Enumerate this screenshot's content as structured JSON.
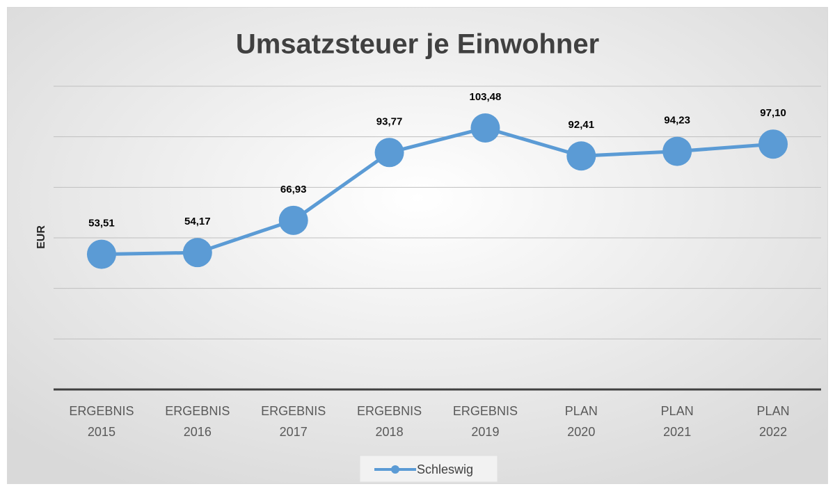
{
  "chart_data": {
    "type": "line",
    "title": "Umsatzsteuer je Einwohner",
    "y_label": "EUR",
    "categories": [
      "ERGEBNIS 2015",
      "ERGEBNIS 2016",
      "ERGEBNIS 2017",
      "ERGEBNIS 2018",
      "ERGEBNIS 2019",
      "PLAN 2020",
      "PLAN 2021",
      "PLAN 2022"
    ],
    "series": [
      {
        "name": "Schleswig",
        "color": "#5b9bd5",
        "values": [
          53.51,
          54.17,
          66.93,
          93.77,
          103.48,
          92.41,
          94.23,
          97.1
        ],
        "value_labels": [
          "53,51",
          "54,17",
          "66,93",
          "93,77",
          "103,48",
          "92,41",
          "94,23",
          "97,10"
        ]
      }
    ],
    "ylim": [
      0,
      120
    ],
    "yticks": [
      0,
      20,
      40,
      60,
      80,
      100,
      120
    ],
    "grid": true,
    "legend": "bottom"
  }
}
